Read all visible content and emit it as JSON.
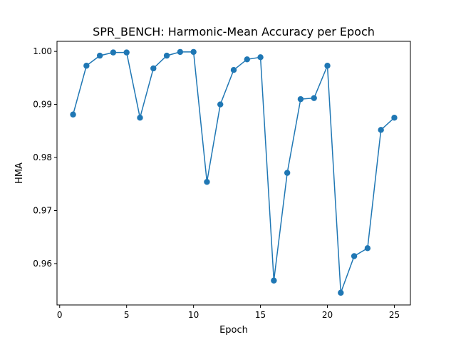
{
  "chart_data": {
    "type": "line",
    "title": "SPR_BENCH: Harmonic-Mean Accuracy per Epoch",
    "xlabel": "Epoch",
    "ylabel": "HMA",
    "xlim": [
      -0.2,
      26.2
    ],
    "ylim": [
      0.9522,
      1.0019
    ],
    "xticks": [
      0,
      5,
      10,
      15,
      20,
      25
    ],
    "xtick_labels": [
      "0",
      "5",
      "10",
      "15",
      "20",
      "25"
    ],
    "yticks": [
      0.96,
      0.97,
      0.98,
      0.99,
      1.0
    ],
    "ytick_labels": [
      "0.96",
      "0.97",
      "0.98",
      "0.99",
      "1.00"
    ],
    "grid": false,
    "legend": "none",
    "series": [
      {
        "color": "#1f77b4",
        "marker": "circle",
        "x": [
          1,
          2,
          3,
          4,
          5,
          6,
          7,
          8,
          9,
          10,
          11,
          12,
          13,
          14,
          15,
          16,
          17,
          18,
          19,
          20,
          21,
          22,
          23,
          24,
          25
        ],
        "y": [
          0.9881,
          0.9973,
          0.9992,
          0.9998,
          0.9998,
          0.9875,
          0.9968,
          0.9992,
          0.9999,
          0.9999,
          0.9754,
          0.99,
          0.9965,
          0.9985,
          0.9989,
          0.9568,
          0.9771,
          0.991,
          0.9912,
          0.9973,
          0.9545,
          0.9614,
          0.9629,
          0.9852,
          0.9875
        ]
      }
    ]
  }
}
